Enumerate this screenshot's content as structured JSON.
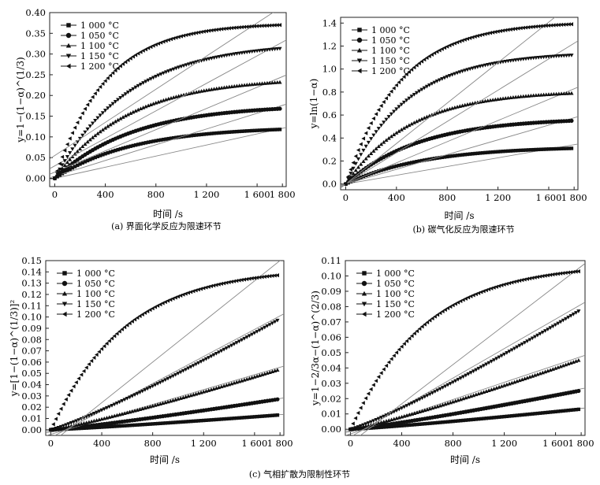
{
  "figure": {
    "captions": {
      "a": "(a) 界面化学反应为限速环节",
      "b": "(b) 碳气化反应为限速环节",
      "c": "(c) 气相扩散为限制性环节"
    }
  },
  "chart_data": [
    {
      "id": "a",
      "type": "scatter",
      "title": "",
      "xlabel": "时间 /s",
      "ylabel": "y=1−(1−α)^(1/3)",
      "xlim": [
        -40,
        1830
      ],
      "ylim": [
        -0.02,
        0.4
      ],
      "xticks": [
        0,
        400,
        800,
        1200,
        1600,
        1800
      ],
      "xtick_labels": [
        "0",
        "400",
        "800",
        "1 200",
        "1 600",
        "1 800"
      ],
      "yticks": [
        0,
        0.05,
        0.1,
        0.15,
        0.2,
        0.25,
        0.3,
        0.35,
        0.4
      ],
      "ytick_labels": [
        "0.00",
        "0.05",
        "0.10",
        "0.15",
        "0.20",
        "0.25",
        "0.30",
        "0.35",
        "0.40"
      ],
      "legend_position": "top-left",
      "series": [
        {
          "name": "1 000 °C",
          "marker": "square",
          "y_end": 0.118,
          "shape": 1.3,
          "fit": [
            0.0,
            6.7e-05
          ]
        },
        {
          "name": "1 050 °C",
          "marker": "circle",
          "y_end": 0.168,
          "shape": 1.3,
          "fit": [
            0.005,
            9.5e-05
          ]
        },
        {
          "name": "1 100 °C",
          "marker": "triangle-up",
          "y_end": 0.232,
          "shape": 1.4,
          "fit": [
            0.015,
            0.000128
          ]
        },
        {
          "name": "1 150 °C",
          "marker": "triangle-down",
          "y_end": 0.313,
          "shape": 1.4,
          "fit": [
            0.03,
            0.000166
          ]
        },
        {
          "name": "1 200 °C",
          "marker": "triangle-left",
          "y_end": 0.37,
          "shape": 2.0,
          "fit": [
            0.055,
            0.0002
          ]
        }
      ]
    },
    {
      "id": "b",
      "type": "scatter",
      "title": "",
      "xlabel": "时间 /s",
      "ylabel": "y=ln(1−α)",
      "xlim": [
        -40,
        1830
      ],
      "ylim": [
        -0.05,
        1.45
      ],
      "xticks": [
        0,
        400,
        800,
        1200,
        1600,
        1800
      ],
      "xtick_labels": [
        "0",
        "400",
        "800",
        "1 200",
        "1 600",
        "1 800"
      ],
      "yticks": [
        0,
        0.2,
        0.4,
        0.6,
        0.8,
        1.0,
        1.2,
        1.4
      ],
      "ytick_labels": [
        "0.0",
        "0.2",
        "0.4",
        "0.6",
        "0.8",
        "1.0",
        "1.2",
        "1.4"
      ],
      "legend_position": "top-left",
      "series": [
        {
          "name": "1 000 °C",
          "marker": "square",
          "y_end": 0.31,
          "shape": 1.3,
          "fit": [
            0.0,
            0.00019
          ]
        },
        {
          "name": "1 050 °C",
          "marker": "circle",
          "y_end": 0.55,
          "shape": 1.4,
          "fit": [
            0.0,
            0.00032
          ]
        },
        {
          "name": "1 100 °C",
          "marker": "triangle-up",
          "y_end": 0.79,
          "shape": 1.6,
          "fit": [
            0.0,
            0.00046
          ]
        },
        {
          "name": "1 150 °C",
          "marker": "triangle-down",
          "y_end": 1.12,
          "shape": 1.7,
          "fit": [
            0.0,
            0.00068
          ]
        },
        {
          "name": "1 200 °C",
          "marker": "triangle-left",
          "y_end": 1.39,
          "shape": 1.9,
          "fit": [
            0.0,
            0.00088
          ]
        }
      ]
    },
    {
      "id": "c",
      "type": "scatter",
      "title": "",
      "xlabel": "时间 /s",
      "ylabel": "y=[1−(1−α)^(1/3)]²",
      "xlim": [
        -40,
        1830
      ],
      "ylim": [
        -0.005,
        0.15
      ],
      "xticks": [
        0,
        400,
        800,
        1200,
        1600,
        1800
      ],
      "xtick_labels": [
        "0",
        "400",
        "800",
        "1 200",
        "1 600",
        "1 800"
      ],
      "yticks": [
        0,
        0.01,
        0.02,
        0.03,
        0.04,
        0.05,
        0.06,
        0.07,
        0.08,
        0.09,
        0.1,
        0.11,
        0.12,
        0.13,
        0.14,
        0.15
      ],
      "ytick_labels": [
        "0.00",
        "0.01",
        "0.02",
        "0.03",
        "0.04",
        "0.05",
        "0.06",
        "0.07",
        "0.08",
        "0.09",
        "0.10",
        "0.11",
        "0.12",
        "0.13",
        "0.14",
        "0.15"
      ],
      "legend_position": "top-left",
      "series": [
        {
          "name": "1 000 °C",
          "marker": "square",
          "y_end": 0.013,
          "shape": 1.0,
          "fit": [
            -0.001,
            8e-06
          ]
        },
        {
          "name": "1 050 °C",
          "marker": "circle",
          "y_end": 0.027,
          "shape": 1.0,
          "fit": [
            -0.002,
            1.65e-05
          ]
        },
        {
          "name": "1 100 °C",
          "marker": "triangle-up",
          "y_end": 0.053,
          "shape": 1.0,
          "fit": [
            -0.004,
            3.3e-05
          ]
        },
        {
          "name": "1 150 °C",
          "marker": "triangle-down",
          "y_end": 0.097,
          "shape": 1.0,
          "fit": [
            -0.007,
            6e-05
          ]
        },
        {
          "name": "1 200 °C",
          "marker": "triangle-left",
          "y_end": 0.137,
          "shape": 1.4,
          "fit": [
            -0.012,
            9e-05
          ]
        }
      ]
    },
    {
      "id": "d",
      "type": "scatter",
      "title": "",
      "xlabel": "时间 /s",
      "ylabel": "y=1−2/3α−(1−α)^(2/3)",
      "xlim": [
        -40,
        1830
      ],
      "ylim": [
        -0.004,
        0.11
      ],
      "xticks": [
        0,
        400,
        800,
        1200,
        1600,
        1800
      ],
      "xtick_labels": [
        "0",
        "400",
        "800",
        "1 200",
        "1 600",
        "1 800"
      ],
      "yticks": [
        0,
        0.01,
        0.02,
        0.03,
        0.04,
        0.05,
        0.06,
        0.07,
        0.08,
        0.09,
        0.1,
        0.11
      ],
      "ytick_labels": [
        "0.00",
        "0.01",
        "0.02",
        "0.03",
        "0.04",
        "0.05",
        "0.06",
        "0.07",
        "0.08",
        "0.09",
        "0.10",
        "0.11"
      ],
      "legend_position": "top-left",
      "series": [
        {
          "name": "1 000 °C",
          "marker": "square",
          "y_end": 0.013,
          "shape": 1.0,
          "fit": [
            -0.0008,
            8e-06
          ]
        },
        {
          "name": "1 050 °C",
          "marker": "circle",
          "y_end": 0.025,
          "shape": 1.0,
          "fit": [
            -0.0015,
            1.55e-05
          ]
        },
        {
          "name": "1 100 °C",
          "marker": "triangle-up",
          "y_end": 0.045,
          "shape": 1.0,
          "fit": [
            -0.003,
            2.8e-05
          ]
        },
        {
          "name": "1 150 °C",
          "marker": "triangle-down",
          "y_end": 0.077,
          "shape": 1.0,
          "fit": [
            -0.005,
            4.8e-05
          ]
        },
        {
          "name": "1 200 °C",
          "marker": "triangle-left",
          "y_end": 0.103,
          "shape": 1.4,
          "fit": [
            -0.009,
            6.4e-05
          ]
        }
      ]
    }
  ]
}
